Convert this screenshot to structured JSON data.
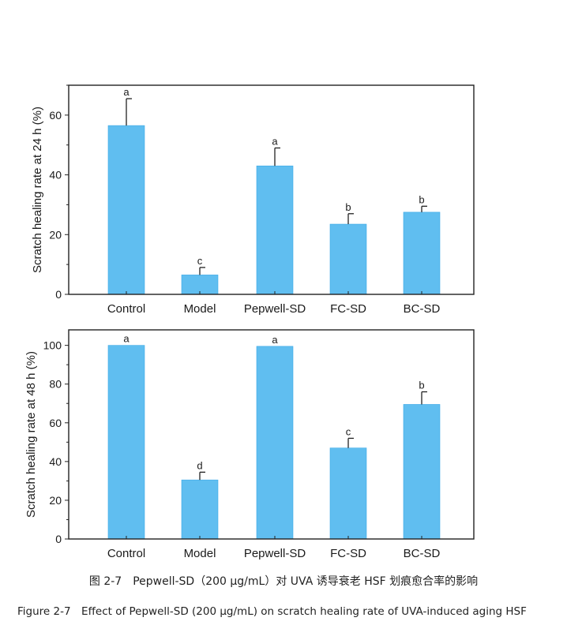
{
  "chart_data": [
    {
      "type": "bar",
      "categories": [
        "Control",
        "Model",
        "Pepwell-SD",
        "FC-SD",
        "BC-SD"
      ],
      "values": [
        56.5,
        6.5,
        43,
        23.5,
        27.5
      ],
      "errors": [
        9,
        2.5,
        6,
        3.5,
        2
      ],
      "significance": [
        "a",
        "c",
        "a",
        "b",
        "b"
      ],
      "ylabel": "Scratch healing rate at 24 h (%)",
      "ylim": [
        0,
        70
      ],
      "yticks": [
        0,
        20,
        40,
        60
      ],
      "bar_color": "#60BEF0",
      "grid": false
    },
    {
      "type": "bar",
      "categories": [
        "Control",
        "Model",
        "Pepwell-SD",
        "FC-SD",
        "BC-SD"
      ],
      "values": [
        100,
        30.5,
        99.5,
        47,
        69.5
      ],
      "errors": [
        0,
        4,
        0,
        5,
        6.5
      ],
      "significance": [
        "a",
        "d",
        "a",
        "c",
        "b"
      ],
      "ylabel": "Scratch healing rate at 48 h (%)",
      "ylim": [
        0,
        108
      ],
      "yticks": [
        0,
        20,
        40,
        60,
        80,
        100
      ],
      "bar_color": "#60BEF0",
      "grid": false
    }
  ],
  "captions": {
    "cn": "图 2-7　Pepwell-SD（200 μg/mL）对 UVA 诱导衰老 HSF 划痕愈合率的影响",
    "en": "Figure 2-7　Effect of Pepwell-SD (200 μg/mL) on scratch healing rate of UVA-induced aging HSF"
  }
}
